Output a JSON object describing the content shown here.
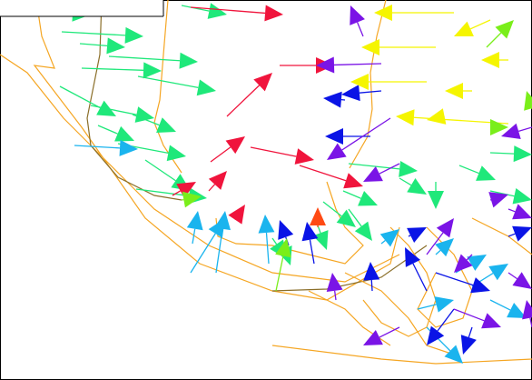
{
  "colors": {
    "background": "#ffffff",
    "frame": "#000000",
    "contour_orange": "#f5a623",
    "contour_olive": "#8b6f2a",
    "green": "#1fe87a",
    "red": "#f0143c",
    "orange_red": "#ff4a14",
    "cyan": "#1ab4ee",
    "blue": "#0a14e6",
    "purple": "#7a14e6",
    "yellow": "#f5f500",
    "lime": "#7aee1a"
  },
  "arrow_groups": [
    "green-arrows",
    "red-arrows",
    "cyan-arrows",
    "blue-arrows",
    "purple-arrows",
    "yellow-arrows",
    "lime-arrows"
  ]
}
